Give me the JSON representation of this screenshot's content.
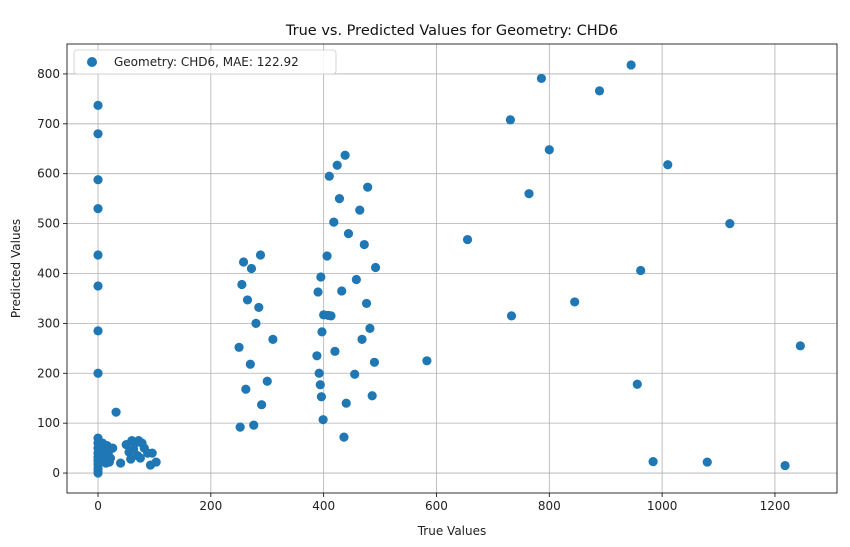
{
  "chart_data": {
    "type": "scatter",
    "title": "True vs. Predicted Values for Geometry: CHD6",
    "xlabel": "True Values",
    "ylabel": "Predicted Values",
    "xlim": [
      -55,
      1310
    ],
    "ylim": [
      -40,
      860
    ],
    "xticks": [
      0,
      200,
      400,
      600,
      800,
      1000,
      1200
    ],
    "yticks": [
      0,
      100,
      200,
      300,
      400,
      500,
      600,
      700,
      800
    ],
    "grid": true,
    "legend_position": "top-left",
    "color": "#1f77b4",
    "series": [
      {
        "name": "Geometry: CHD6, MAE: 122.92",
        "x": [
          0,
          0,
          0,
          0,
          0,
          0,
          0,
          0,
          0,
          0,
          0,
          0,
          0,
          0,
          0,
          0,
          0,
          0,
          5,
          8,
          10,
          12,
          14,
          16,
          18,
          20,
          22,
          26,
          32,
          40,
          50,
          55,
          58,
          60,
          63,
          66,
          70,
          72,
          75,
          78,
          82,
          88,
          93,
          96,
          103,
          250,
          252,
          255,
          258,
          262,
          265,
          270,
          272,
          276,
          280,
          285,
          288,
          290,
          300,
          310,
          388,
          390,
          392,
          394,
          395,
          396,
          397,
          399,
          400,
          406,
          408,
          410,
          413,
          418,
          420,
          424,
          428,
          432,
          436,
          438,
          440,
          444,
          455,
          458,
          464,
          468,
          472,
          476,
          478,
          482,
          486,
          490,
          492,
          583,
          655,
          731,
          733,
          764,
          786,
          800,
          845,
          889,
          945,
          956,
          962,
          984,
          1010,
          1080,
          1120,
          1218,
          1245
        ],
        "y": [
          737,
          680,
          588,
          530,
          437,
          375,
          285,
          200,
          70,
          60,
          50,
          40,
          32,
          25,
          18,
          10,
          5,
          0,
          35,
          60,
          45,
          25,
          20,
          55,
          40,
          22,
          30,
          50,
          122,
          20,
          57,
          42,
          28,
          65,
          48,
          60,
          35,
          65,
          30,
          60,
          50,
          40,
          16,
          40,
          22,
          252,
          92,
          378,
          423,
          168,
          347,
          218,
          410,
          96,
          300,
          332,
          437,
          137,
          184,
          268,
          235,
          363,
          200,
          177,
          393,
          153,
          283,
          107,
          317,
          435,
          316,
          595,
          315,
          503,
          244,
          617,
          550,
          365,
          72,
          637,
          140,
          480,
          198,
          388,
          527,
          268,
          458,
          340,
          573,
          290,
          155,
          222,
          412,
          225,
          468,
          708,
          315,
          560,
          791,
          648,
          343,
          766,
          818,
          178,
          406,
          23,
          618,
          22,
          500,
          15,
          255
        ]
      }
    ]
  }
}
